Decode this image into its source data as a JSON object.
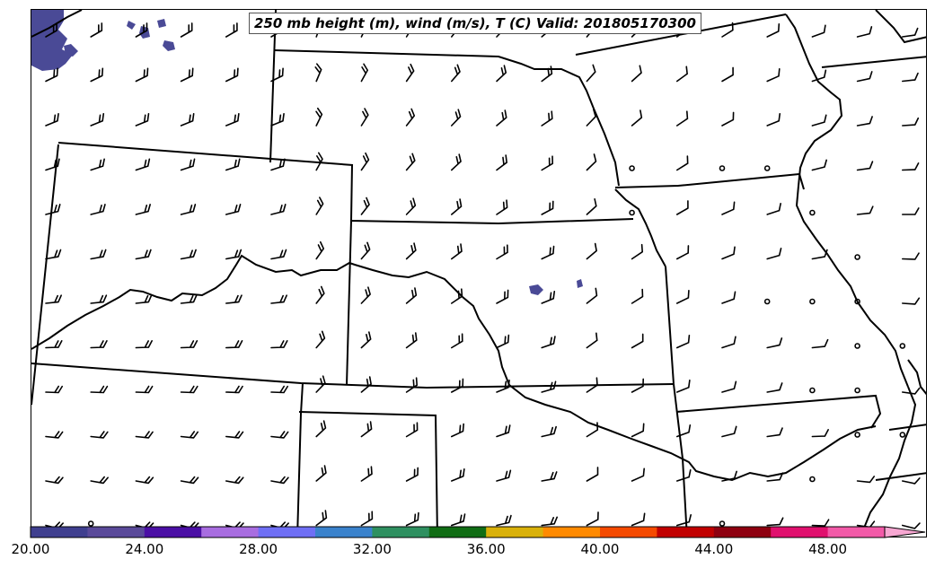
{
  "title": "250 mb height (m), wind (m/s), T (C) Valid: 201805170300",
  "colorbar": {
    "tick_labels": [
      "20.00",
      "24.00",
      "28.00",
      "32.00",
      "36.00",
      "40.00",
      "44.00",
      "48.00"
    ],
    "colors": [
      "#3f3f8f",
      "#5a4a9a",
      "#4b0fa5",
      "#a86de0",
      "#6f6ff5",
      "#3a82cc",
      "#2e9060",
      "#106d14",
      "#d9b10a",
      "#ff8a00",
      "#f54a00",
      "#c10000",
      "#8e0010",
      "#e0106e",
      "#f25aa8",
      "#f7a7d2"
    ],
    "extend": "max"
  },
  "map": {
    "land_color": "#ffffff",
    "boundary_color": "#000000",
    "temperature_fill_color": "#4a4a96"
  },
  "wind_barbs": {
    "representation": "barbs",
    "calm_marker": "circle"
  }
}
